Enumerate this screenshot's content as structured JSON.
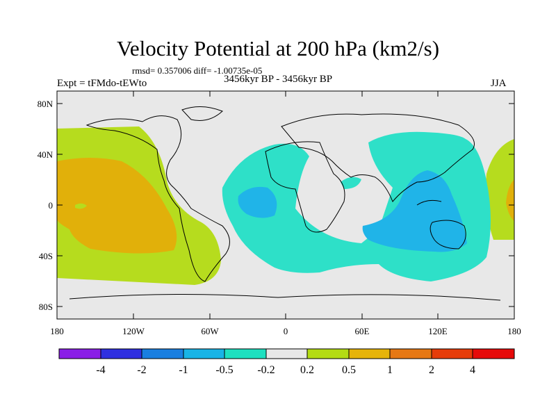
{
  "title": "Velocity Potential at 200 hPa (km2/s)",
  "stats": "rmsd= 0.357006 diff= -1.00735e-05",
  "subtitle": "3456kyr BP - 3456kyr BP",
  "experiment": "Expt = tFMdo-tEWto",
  "season": "JJA",
  "map": {
    "lat_labels": [
      "80N",
      "40N",
      "0",
      "40S",
      "80S"
    ],
    "lon_labels": [
      "180",
      "120W",
      "60W",
      "0",
      "60E",
      "120E",
      "180"
    ]
  },
  "colorbar": {
    "labels": [
      "-4",
      "-2",
      "-1",
      "-0.5",
      "-0.2",
      "0.2",
      "0.5",
      "1",
      "2",
      "4"
    ],
    "colors": [
      "#8a1ee6",
      "#3030e0",
      "#1a7fe0",
      "#19b4e6",
      "#1ee0c0",
      "#e8e8e8",
      "#b4dc14",
      "#e6b40a",
      "#e67814",
      "#e63c0a",
      "#e60a0a"
    ]
  },
  "colors": {
    "ocean_default": "#e8e8e8",
    "cyan": "#2ee0c8",
    "blue": "#20b4e8",
    "yellowgreen": "#b6dc1e",
    "orange": "#e1b00a"
  }
}
